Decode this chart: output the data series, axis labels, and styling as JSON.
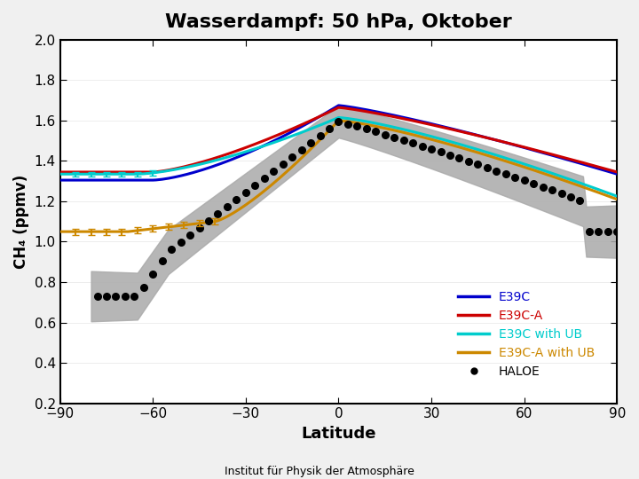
{
  "title": "Wasserdampf: 50 hPa, Oktober",
  "xlabel": "Latitude",
  "ylabel": "CH₄ (ppmv)",
  "xlim": [
    -90,
    90
  ],
  "ylim": [
    0.2,
    2.0
  ],
  "yticks": [
    0.2,
    0.4,
    0.6,
    0.8,
    1.0,
    1.2,
    1.4,
    1.6,
    1.8,
    2.0
  ],
  "xticks": [
    -90,
    -60,
    -30,
    0,
    30,
    60,
    90
  ],
  "colors": {
    "E39C": "#0000cc",
    "E39C_A": "#cc0000",
    "E39C_UB": "#00cccc",
    "E39C_A_UB": "#cc8800",
    "HALOE": "#000000",
    "shade": "#aaaaaa"
  },
  "background": "#ffffff",
  "footer": "Institut für Physik der Atmosphäre"
}
